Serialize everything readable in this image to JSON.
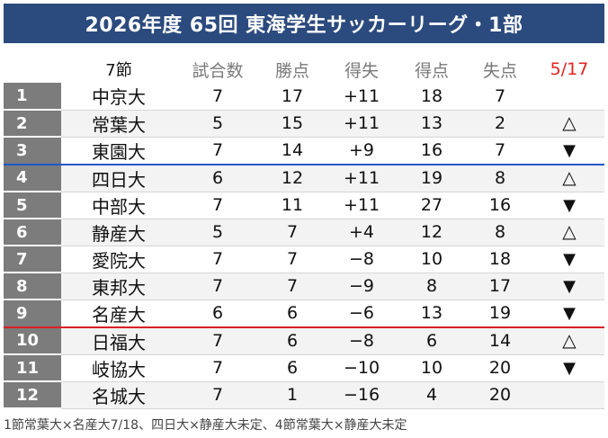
{
  "title": "2026年度 65回 東海学生サッカーリーグ・1部",
  "header": {
    "round": "7節",
    "played": "試合数",
    "points": "勝点",
    "goal_diff": "得失",
    "goals_for": "得点",
    "goals_against": "失点",
    "date": "5/17"
  },
  "rows": [
    {
      "rank": "1",
      "team": "中京大",
      "played": "7",
      "points": "17",
      "goal_diff": "+11",
      "goals_for": "18",
      "goals_against": "7",
      "trend": ""
    },
    {
      "rank": "2",
      "team": "常葉大",
      "played": "5",
      "points": "15",
      "goal_diff": "+11",
      "goals_for": "13",
      "goals_against": "2",
      "trend": "△"
    },
    {
      "rank": "3",
      "team": "東園大",
      "played": "7",
      "points": "14",
      "goal_diff": "+9",
      "goals_for": "16",
      "goals_against": "7",
      "trend": "▼"
    },
    {
      "rank": "4",
      "team": "四日大",
      "played": "6",
      "points": "12",
      "goal_diff": "+11",
      "goals_for": "19",
      "goals_against": "8",
      "trend": "△"
    },
    {
      "rank": "5",
      "team": "中部大",
      "played": "7",
      "points": "11",
      "goal_diff": "+11",
      "goals_for": "27",
      "goals_against": "16",
      "trend": "▼"
    },
    {
      "rank": "6",
      "team": "静産大",
      "played": "5",
      "points": "7",
      "goal_diff": "+4",
      "goals_for": "12",
      "goals_against": "8",
      "trend": "△"
    },
    {
      "rank": "7",
      "team": "愛院大",
      "played": "7",
      "points": "7",
      "goal_diff": "−8",
      "goals_for": "10",
      "goals_against": "18",
      "trend": "▼"
    },
    {
      "rank": "8",
      "team": "東邦大",
      "played": "7",
      "points": "7",
      "goal_diff": "−9",
      "goals_for": "8",
      "goals_against": "17",
      "trend": "▼"
    },
    {
      "rank": "9",
      "team": "名産大",
      "played": "6",
      "points": "6",
      "goal_diff": "−6",
      "goals_for": "13",
      "goals_against": "19",
      "trend": "▼"
    },
    {
      "rank": "10",
      "team": "日福大",
      "played": "7",
      "points": "6",
      "goal_diff": "−8",
      "goals_for": "6",
      "goals_against": "14",
      "trend": "△"
    },
    {
      "rank": "11",
      "team": "岐協大",
      "played": "7",
      "points": "6",
      "goal_diff": "−10",
      "goals_for": "10",
      "goals_against": "20",
      "trend": "▼"
    },
    {
      "rank": "12",
      "team": "名城大",
      "played": "7",
      "points": "1",
      "goal_diff": "−16",
      "goals_for": "4",
      "goals_against": "20",
      "trend": ""
    }
  ],
  "footnote": "1節常葉大×名産大7/18、四日大×静産大未定、4節常葉大×静産大未定",
  "colors": {
    "title_bg": "#2b4a7e",
    "rank_bg": "#7c7c7c",
    "promotion_line": "#1b56c9",
    "relegation_line": "#d81f26",
    "date_text": "#e5231f"
  }
}
